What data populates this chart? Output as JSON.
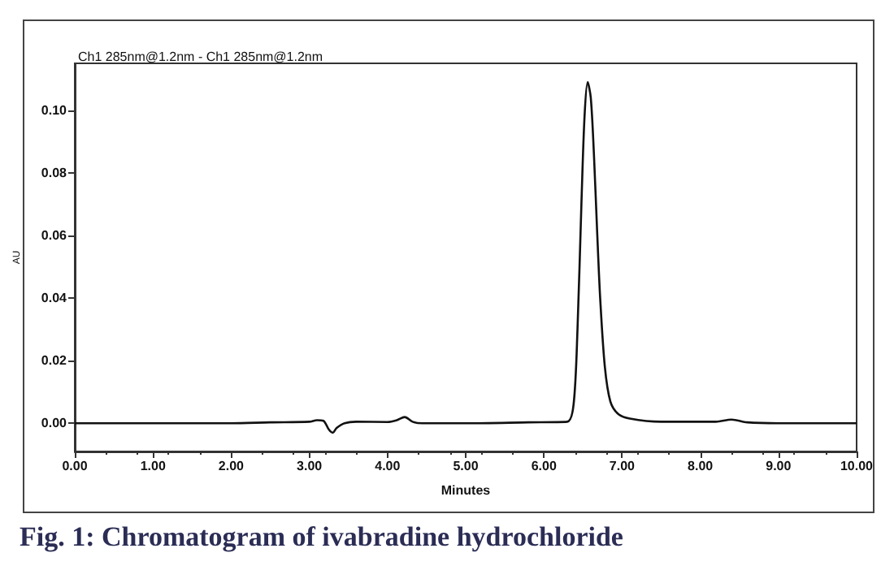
{
  "chart_data": {
    "type": "line",
    "title": "Ch1 285nm@1.2nm - Ch1 285nm@1.2nm",
    "xlabel": "Minutes",
    "ylabel": "AU",
    "annotations": [
      "Fig. 1: Chromatogram of ivabradine hydrochloride"
    ],
    "x": [
      0,
      1,
      2,
      2.5,
      3.0,
      3.1,
      3.18,
      3.25,
      3.3,
      3.35,
      3.45,
      3.6,
      4.0,
      4.12,
      4.22,
      4.32,
      4.45,
      5.0,
      5.8,
      6.3,
      6.38,
      6.43,
      6.48,
      6.52,
      6.56,
      6.6,
      6.64,
      6.68,
      6.72,
      6.78,
      6.85,
      6.95,
      7.1,
      7.5,
      8.2,
      8.4,
      8.6,
      9.0,
      10
    ],
    "series": [
      {
        "color": "#111111",
        "values": [
          0,
          0,
          0,
          0.0003,
          0.0005,
          0.001,
          0.0008,
          -0.002,
          -0.003,
          -0.0015,
          0,
          0.0005,
          0.0004,
          0.001,
          0.002,
          0.0005,
          0,
          0,
          0.0003,
          0.0005,
          0.006,
          0.03,
          0.07,
          0.098,
          0.109,
          0.104,
          0.086,
          0.062,
          0.04,
          0.018,
          0.007,
          0.003,
          0.0015,
          0.0005,
          0.0005,
          0.0012,
          0.0003,
          0,
          0
        ]
      }
    ],
    "xlim": [
      0,
      10
    ],
    "ylim": [
      -0.009,
      0.115
    ],
    "xticks": [
      {
        "value": 0,
        "label": "0.00"
      },
      {
        "value": 1,
        "label": "1.00"
      },
      {
        "value": 2,
        "label": "2.00"
      },
      {
        "value": 3,
        "label": "3.00"
      },
      {
        "value": 4,
        "label": "4.00"
      },
      {
        "value": 5,
        "label": "5.00"
      },
      {
        "value": 6,
        "label": "6.00"
      },
      {
        "value": 7,
        "label": "7.00"
      },
      {
        "value": 8,
        "label": "8.00"
      },
      {
        "value": 9,
        "label": "9.00"
      },
      {
        "value": 10,
        "label": "10.00"
      }
    ],
    "yticks": [
      {
        "value": 0,
        "label": "0.00"
      },
      {
        "value": 0.02,
        "label": "0.02"
      },
      {
        "value": 0.04,
        "label": "0.04"
      },
      {
        "value": 0.06,
        "label": "0.06"
      },
      {
        "value": 0.08,
        "label": "0.08"
      },
      {
        "value": 0.1,
        "label": "0.10"
      }
    ],
    "marker": "none",
    "line_style": "solid"
  }
}
